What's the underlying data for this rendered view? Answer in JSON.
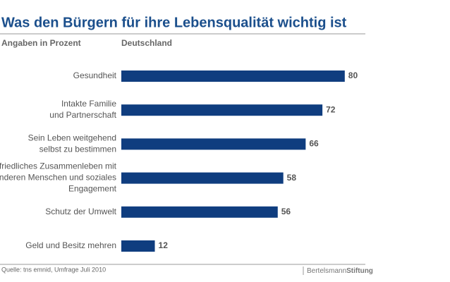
{
  "chart_data": {
    "type": "bar",
    "orientation": "horizontal",
    "title": "Was den Bürgern für ihre Lebensqualität wichtig ist",
    "subtitle": "Angaben in Prozent",
    "series_label": "Deutschland",
    "categories": [
      [
        "Gesundheit"
      ],
      [
        "Intakte Familie",
        "und Partnerschaft"
      ],
      [
        "Sein Leben weitgehend",
        "selbst zu bestimmen"
      ],
      [
        "friedliches Zusammenleben mit",
        "anderen Menschen und soziales",
        "Engagement"
      ],
      [
        "Schutz der Umwelt"
      ],
      [
        "Geld und Besitz mehren"
      ]
    ],
    "values": [
      80,
      72,
      66,
      58,
      56,
      12
    ],
    "color": "#0f3d7f",
    "source": "Quelle: tns emnid, Umfrage Juli 2010",
    "logo": {
      "regular": "Bertelsmann",
      "bold": "Stiftung"
    }
  }
}
